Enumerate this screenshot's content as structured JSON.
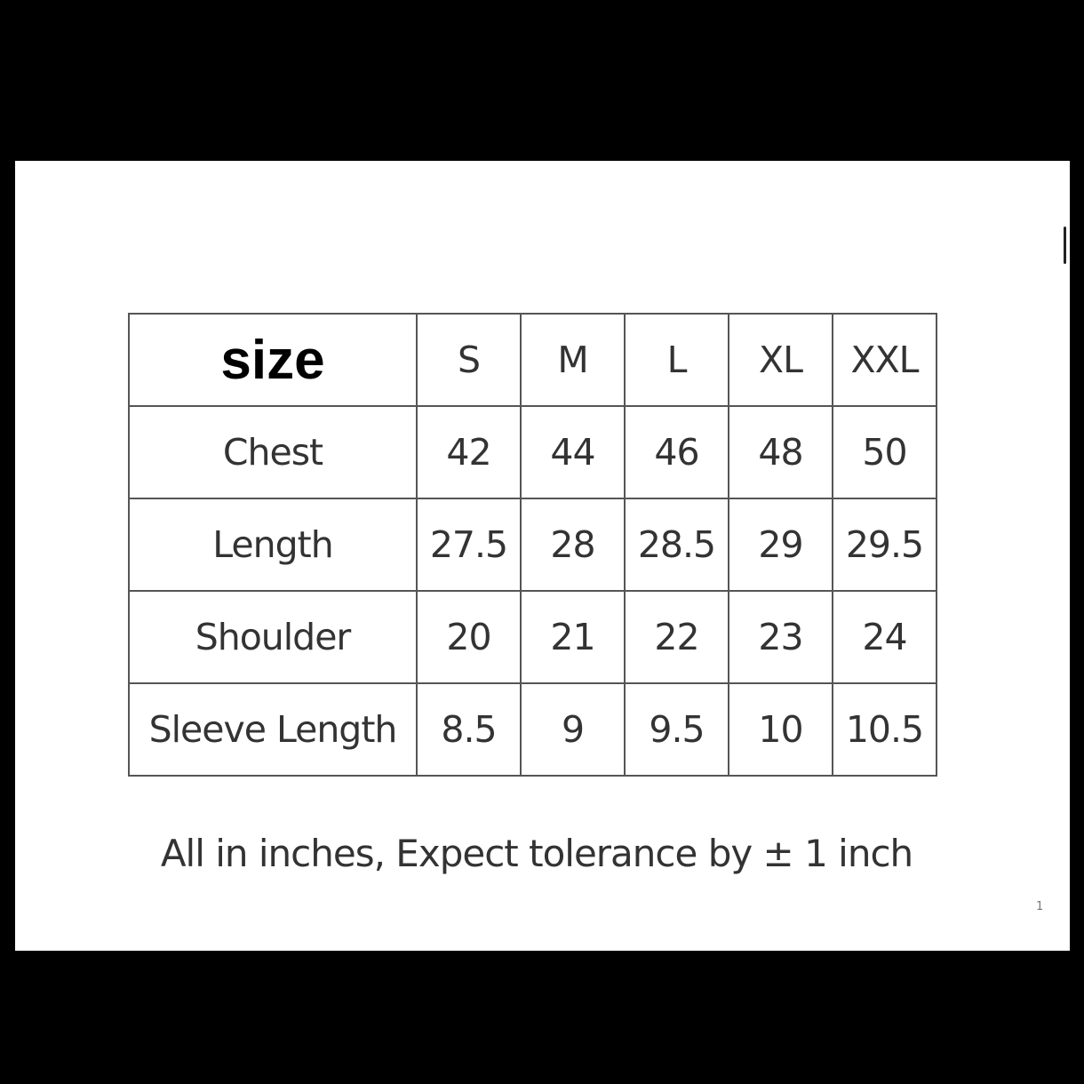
{
  "table": {
    "header": {
      "label": "size",
      "sizes": [
        "S",
        "M",
        "L",
        "XL",
        "XXL"
      ]
    },
    "rows": [
      {
        "label": "Chest",
        "values": [
          "42",
          "44",
          "46",
          "48",
          "50"
        ]
      },
      {
        "label": "Length",
        "values": [
          "27.5",
          "28",
          "28.5",
          "29",
          "29.5"
        ]
      },
      {
        "label": "Shoulder",
        "values": [
          "20",
          "21",
          "22",
          "23",
          "24"
        ]
      },
      {
        "label": "Sleeve Length",
        "values": [
          "8.5",
          "9",
          "9.5",
          "10",
          "10.5"
        ]
      }
    ]
  },
  "footer": "All in inches, Expect tolerance by ± 1 inch",
  "page_number": "1"
}
